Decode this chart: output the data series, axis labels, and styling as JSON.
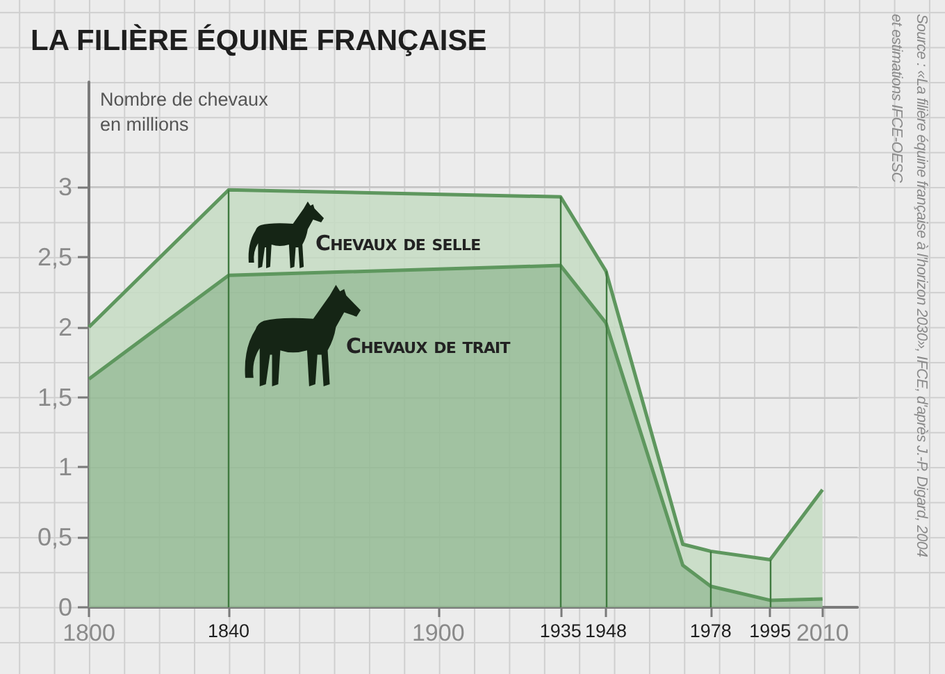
{
  "chart_data": {
    "type": "area",
    "title": "LA FILIÈRE ÉQUINE FRANÇAISE",
    "ylabel": "Nombre de chevaux en millions",
    "x": [
      1800,
      1840,
      1935,
      1948,
      1970,
      1978,
      1995,
      2010
    ],
    "series": [
      {
        "name": "Chevaux de trait",
        "color": "#94bb94",
        "values": [
          1.63,
          2.37,
          2.44,
          2.03,
          0.3,
          0.15,
          0.05,
          0.06
        ]
      },
      {
        "name": "Chevaux de selle",
        "color": "#c5dcc3",
        "values": [
          0.37,
          0.61,
          0.49,
          0.37,
          0.15,
          0.25,
          0.29,
          0.78
        ]
      }
    ],
    "stacked": true,
    "xlim": [
      1800,
      2020
    ],
    "xticks": [
      1800,
      1840,
      1900,
      1935,
      1948,
      1978,
      1995,
      2010
    ],
    "ylim": [
      0,
      3.75
    ],
    "yticks": [
      0,
      {
        "value": 0.5,
        "label": "0,5"
      },
      1,
      {
        "value": 1.5,
        "label": "1,5"
      },
      2,
      {
        "value": 2.5,
        "label": "2,5"
      },
      3
    ],
    "ref_lines": [
      {
        "axis": "x",
        "value": 1840,
        "color": "#3f7a3f"
      },
      {
        "axis": "x",
        "value": 1935,
        "color": "#3f7a3f"
      },
      {
        "axis": "x",
        "value": 1948,
        "color": "#3f7a3f"
      },
      {
        "axis": "x",
        "value": 1978,
        "color": "#3f7a3f"
      },
      {
        "axis": "x",
        "value": 1995,
        "color": "#3f7a3f"
      }
    ],
    "grid": "y",
    "legend": false,
    "marker": "none",
    "annotations": [
      "Source : «La filière équine française à l'horizon 2030», IFCE, d'après J.-P. Digard, 2004 et estimations IFCE-OESC"
    ]
  }
}
